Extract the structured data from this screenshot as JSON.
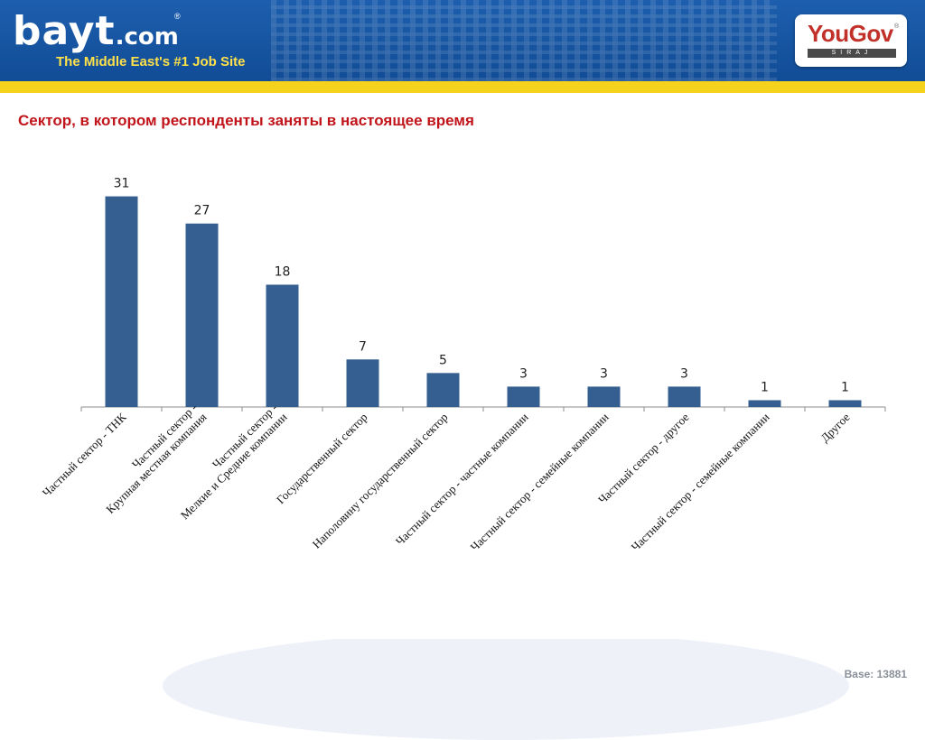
{
  "header": {
    "logo_text": "bayt",
    "logo_suffix": ".com",
    "logo_reg": "®",
    "tagline": "The Middle East's #1 Job Site",
    "partner_logo": "YouGov",
    "partner_reg": "®",
    "partner_sub": "SIRAJ"
  },
  "title": "Сектор, в котором респонденты заняты в настоящее время",
  "footer": {
    "base": "Base: 13881"
  },
  "colors": {
    "bar": "#365f91",
    "title": "#c0141a",
    "stripe": "#f5d21b",
    "header": "#1a5aa8"
  },
  "chart_data": {
    "type": "bar",
    "categories": [
      "Частный сектор - ТНК",
      "Частный сектор -\nКрупная местная компания",
      "Частный сектор -\nМелкие и Средние компании",
      "Государственный сектор",
      "Наполовину государственный сектор",
      "Частный сектор - частные компании",
      "Частный сектор - семейные компании",
      "Частный сектор - другое",
      "Частный сектор - семейные компании",
      "Другое"
    ],
    "values": [
      31,
      27,
      18,
      7,
      5,
      3,
      3,
      3,
      1,
      1
    ],
    "ylim": [
      0,
      35
    ],
    "grid": false,
    "legend": "none"
  }
}
